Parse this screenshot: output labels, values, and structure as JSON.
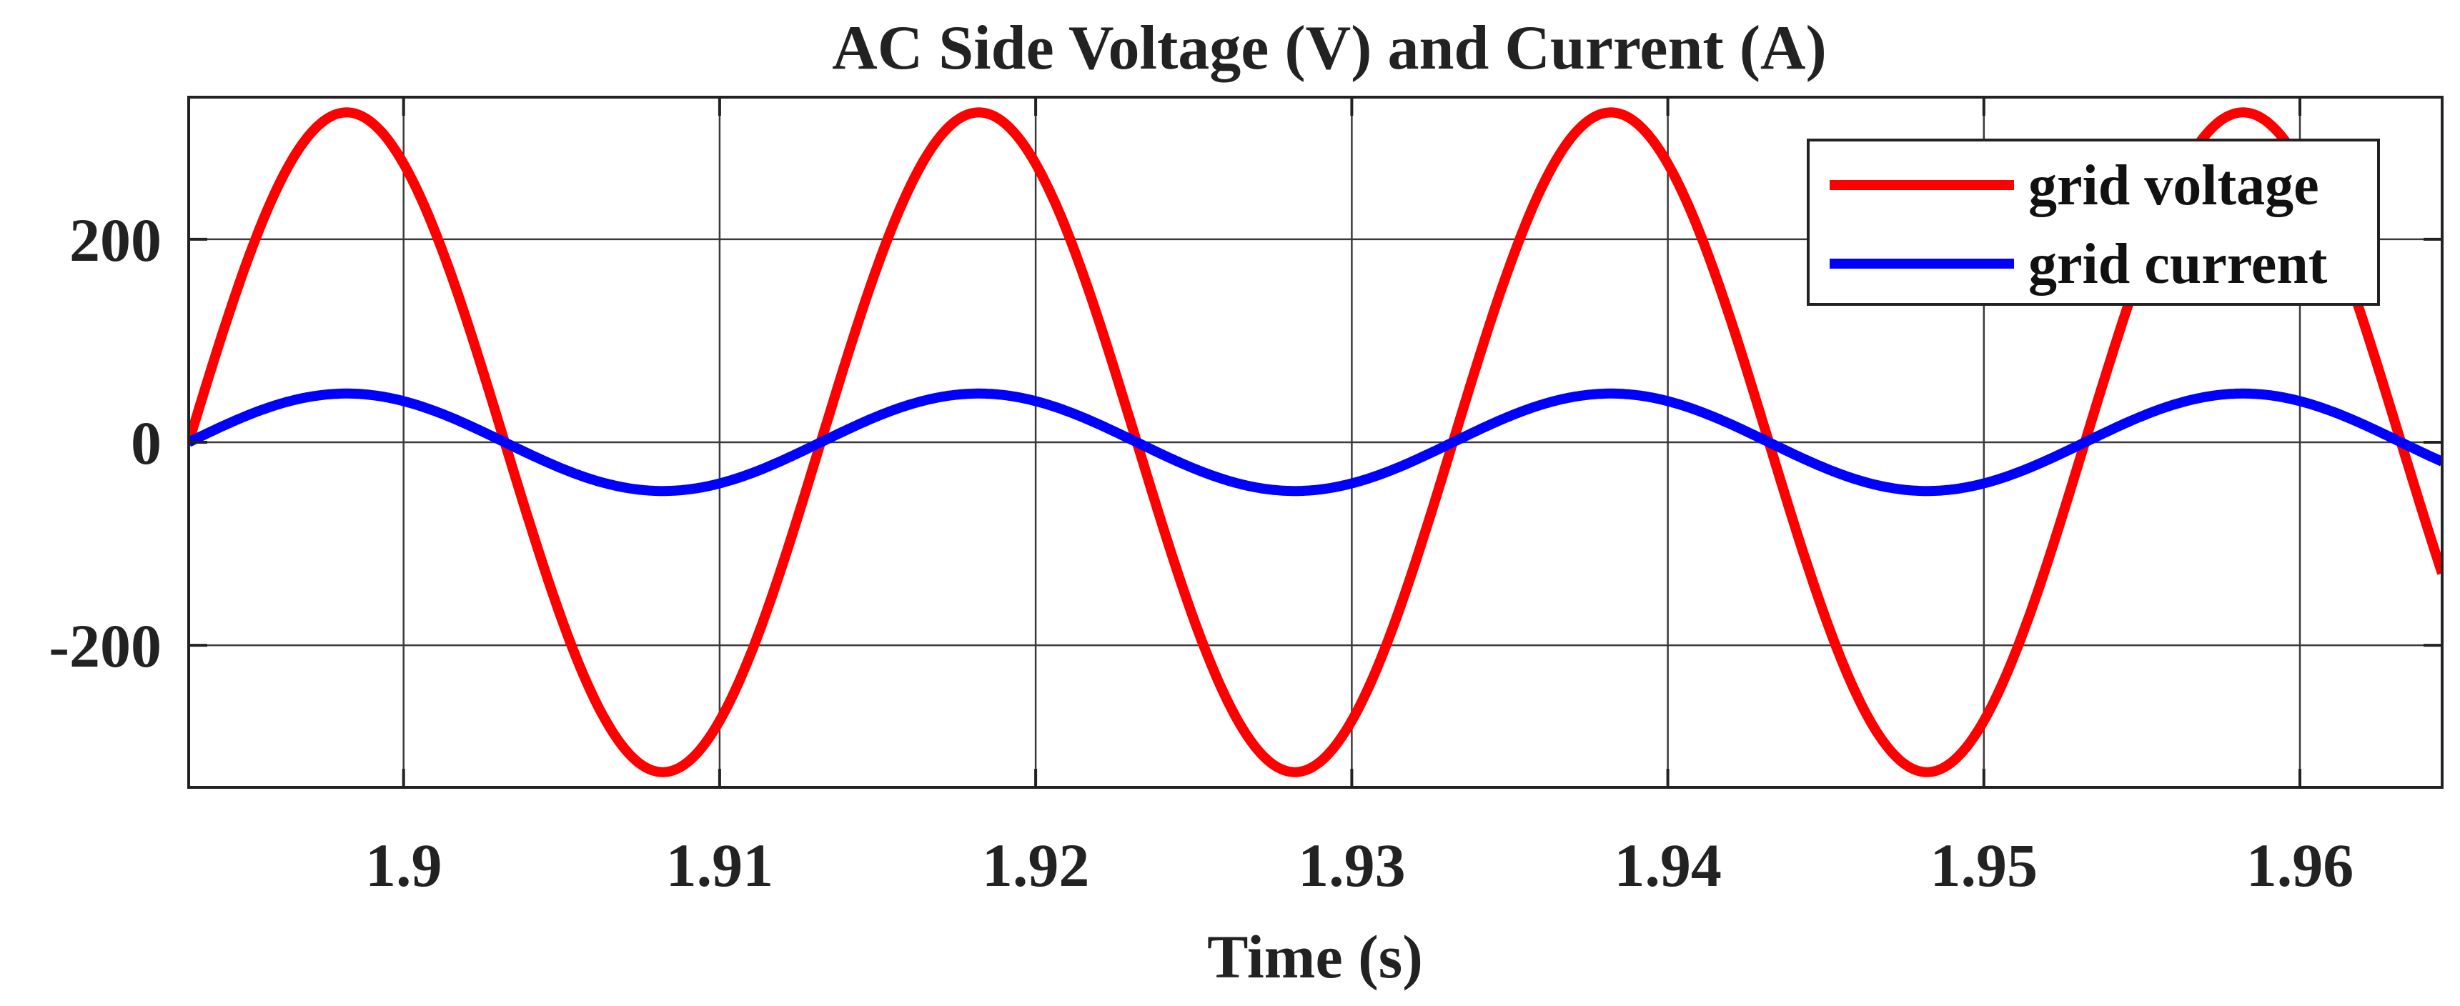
{
  "chart_data": {
    "type": "line",
    "title": "AC Side Voltage  (V) and Current (A)",
    "xlabel": "Time (s)",
    "ylabel": "",
    "xlim": [
      1.8932,
      1.9645
    ],
    "ylim": [
      -340,
      340
    ],
    "xticks": [
      1.9,
      1.91,
      1.92,
      1.93,
      1.94,
      1.95,
      1.96
    ],
    "xtick_labels": [
      "1.9",
      "1.91",
      "1.92",
      "1.93",
      "1.94",
      "1.95",
      "1.96"
    ],
    "yticks": [
      -200,
      0,
      200
    ],
    "ytick_labels": [
      "-200",
      "0",
      "200"
    ],
    "grid": true,
    "legend_position": "top-right",
    "frequency_hz": 50,
    "series": [
      {
        "name": "grid voltage",
        "color": "#ff0000",
        "amplitude": 325,
        "peaks": [
          [
            1.8982,
            325
          ],
          [
            1.9182,
            325
          ],
          [
            1.9382,
            325
          ],
          [
            1.9582,
            325
          ]
        ],
        "troughs": [
          [
            1.9082,
            -325
          ],
          [
            1.9282,
            -325
          ],
          [
            1.9482,
            -325
          ]
        ],
        "zero_crossings": [
          1.8932,
          1.9032,
          1.9132,
          1.9232,
          1.9332,
          1.9432,
          1.9532,
          1.9632
        ]
      },
      {
        "name": "grid current",
        "color": "#0000ff",
        "amplitude": 48,
        "peaks": [
          [
            1.8982,
            48
          ],
          [
            1.9182,
            48
          ],
          [
            1.9382,
            48
          ],
          [
            1.9582,
            48
          ]
        ],
        "troughs": [
          [
            1.9082,
            -48
          ],
          [
            1.9282,
            -48
          ],
          [
            1.9482,
            -48
          ]
        ],
        "zero_crossings": [
          1.8932,
          1.9032,
          1.9132,
          1.9232,
          1.9332,
          1.9432,
          1.9532,
          1.9632
        ]
      }
    ]
  }
}
